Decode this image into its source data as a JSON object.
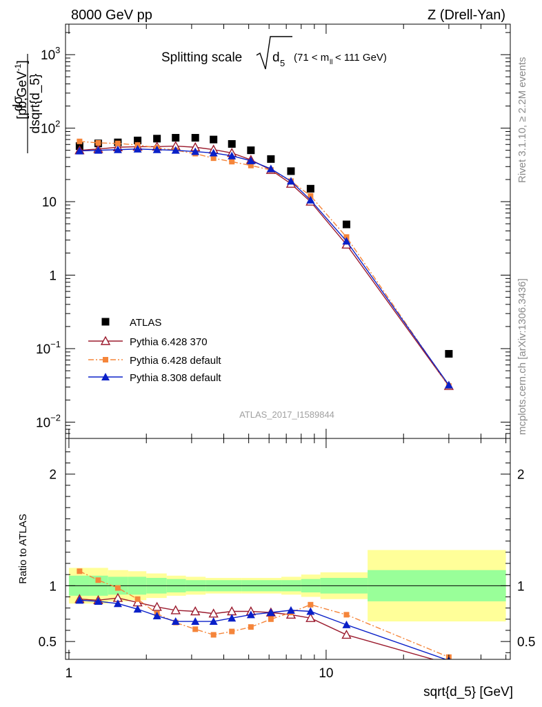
{
  "header": {
    "energy_label": "8000 GeV pp",
    "process_label": "Z (Drell-Yan)",
    "side_label_1": "Rivet 3.1.10, ≥ 2.2M events",
    "side_label_2": "mcplots.cern.ch [arXiv:1306.3436]",
    "watermark": "ATLAS_2017_I1589844"
  },
  "colors": {
    "atlas": "#000000",
    "py6_370": "#9b1b2e",
    "py6_default": "#f5853a",
    "py8_default": "#0a20c8",
    "band_inner": "#99ff99",
    "band_outer": "#ffff99"
  },
  "chart_data": [
    {
      "type": "scatter",
      "panel": "main",
      "title_main": "Splitting scale",
      "title_sym": "d",
      "title_sub": "5",
      "title_range_a": "(71 < m",
      "title_range_sub": "ll",
      "title_range_b": " < 111 GeV)",
      "ylabel_num": "dσ",
      "ylabel_den": "dsqrt{d_5}",
      "ylabel_unit": "[pb,GeV",
      "ylabel_unit_sup": "-1",
      "ylabel_unit_end": "]",
      "xscale": "log",
      "yscale": "log",
      "xlim": [
        0.97,
        52
      ],
      "ylim": [
        0.006,
        2600
      ],
      "legend_position": "bottom-left",
      "y_ticks": [
        {
          "v": 0.01,
          "base": "10",
          "exp": "−2"
        },
        {
          "v": 0.1,
          "base": "10",
          "exp": "−1"
        },
        {
          "v": 1,
          "base": "1",
          "exp": ""
        },
        {
          "v": 10,
          "base": "10",
          "exp": ""
        },
        {
          "v": 100,
          "base": "10",
          "exp": "2"
        },
        {
          "v": 1000,
          "base": "10",
          "exp": "3"
        }
      ],
      "series": [
        {
          "name": "ATLAS",
          "marker": "square",
          "color": "#000000",
          "x": [
            1.1,
            1.3,
            1.55,
            1.85,
            2.2,
            2.6,
            3.1,
            3.65,
            4.3,
            5.1,
            6.1,
            7.3,
            8.7,
            12.0,
            30.0
          ],
          "y": [
            57,
            62,
            64,
            68,
            72,
            74,
            74,
            70,
            61,
            50,
            38,
            26,
            15,
            4.9,
            0.085
          ]
        },
        {
          "name": "Pythia 6.428 370",
          "marker": "triangle-open",
          "color": "#9b1b2e",
          "line": "solid",
          "x": [
            1.1,
            1.3,
            1.55,
            1.85,
            2.2,
            2.6,
            3.1,
            3.65,
            4.3,
            5.1,
            6.1,
            7.3,
            8.7,
            12.0,
            30.0
          ],
          "y": [
            50,
            52,
            55,
            56,
            56,
            57,
            55,
            51,
            46,
            37,
            27,
            17.5,
            10,
            2.6,
            0.031
          ]
        },
        {
          "name": "Pythia 6.428 default",
          "marker": "square-small",
          "color": "#f5853a",
          "line": "dashdot",
          "x": [
            1.1,
            1.3,
            1.55,
            1.85,
            2.2,
            2.6,
            3.1,
            3.65,
            4.3,
            5.1,
            6.1,
            7.3,
            8.7,
            12.0,
            30.0
          ],
          "y": [
            66,
            63,
            62,
            59,
            54,
            50,
            45,
            39,
            35,
            31,
            27,
            19,
            12,
            3.3,
            0.031
          ]
        },
        {
          "name": "Pythia 8.308 default",
          "marker": "triangle",
          "color": "#0a20c8",
          "line": "solid",
          "x": [
            1.1,
            1.3,
            1.55,
            1.85,
            2.2,
            2.6,
            3.1,
            3.65,
            4.3,
            5.1,
            6.1,
            7.3,
            8.7,
            12.0,
            30.0
          ],
          "y": [
            49,
            50,
            51,
            52,
            51,
            50,
            48,
            46,
            42,
            36,
            28,
            19,
            10.5,
            2.9,
            0.032
          ]
        }
      ]
    },
    {
      "type": "line",
      "panel": "ratio",
      "ylabel": "Ratio to ATLAS",
      "xlabel": "sqrt{d_5} [GeV]",
      "xscale": "log",
      "xlim": [
        0.97,
        52
      ],
      "ylim": [
        0.34,
        2.32
      ],
      "y_ticks": [
        0.5,
        1,
        2
      ],
      "y_tick_labels": [
        "0.5",
        "1",
        "2"
      ],
      "x_ticks": [
        1,
        10
      ],
      "x_tick_labels": [
        "1",
        "10"
      ],
      "bands": {
        "edges": [
          1.0,
          1.2,
          1.42,
          1.7,
          2.0,
          2.4,
          2.85,
          3.4,
          4.0,
          4.7,
          5.6,
          6.7,
          8.0,
          9.5,
          14.5,
          50.0
        ],
        "inner_lo": [
          0.91,
          0.91,
          0.92,
          0.92,
          0.93,
          0.94,
          0.95,
          0.95,
          0.95,
          0.95,
          0.95,
          0.95,
          0.94,
          0.93,
          0.86
        ],
        "inner_hi": [
          1.09,
          1.09,
          1.08,
          1.08,
          1.07,
          1.06,
          1.05,
          1.05,
          1.05,
          1.05,
          1.05,
          1.05,
          1.06,
          1.07,
          1.14
        ],
        "outer_lo": [
          0.84,
          0.84,
          0.86,
          0.87,
          0.89,
          0.91,
          0.92,
          0.93,
          0.93,
          0.93,
          0.93,
          0.92,
          0.9,
          0.88,
          0.68
        ],
        "outer_hi": [
          1.16,
          1.16,
          1.14,
          1.13,
          1.11,
          1.09,
          1.08,
          1.07,
          1.07,
          1.07,
          1.07,
          1.08,
          1.1,
          1.12,
          1.32
        ]
      },
      "series": [
        {
          "name": "Pythia 6.428 370",
          "marker": "triangle-open",
          "color": "#9b1b2e",
          "line": "solid",
          "x": [
            1.1,
            1.3,
            1.55,
            1.85,
            2.2,
            2.6,
            3.1,
            3.65,
            4.3,
            5.1,
            6.1,
            7.3,
            8.7,
            12.0,
            30.0
          ],
          "y": [
            0.88,
            0.87,
            0.89,
            0.85,
            0.81,
            0.78,
            0.77,
            0.75,
            0.77,
            0.77,
            0.76,
            0.74,
            0.71,
            0.56,
            0.3
          ]
        },
        {
          "name": "Pythia 6.428 default",
          "marker": "square-small",
          "color": "#f5853a",
          "line": "dashdot",
          "x": [
            1.1,
            1.3,
            1.55,
            1.85,
            2.2,
            2.6,
            3.1,
            3.65,
            4.3,
            5.1,
            6.1,
            7.3,
            8.7,
            12.0,
            30.0
          ],
          "y": [
            1.13,
            1.05,
            0.98,
            0.88,
            0.75,
            0.67,
            0.61,
            0.56,
            0.59,
            0.63,
            0.7,
            0.76,
            0.83,
            0.74,
            0.36
          ]
        },
        {
          "name": "Pythia 8.308 default",
          "marker": "triangle",
          "color": "#0a20c8",
          "line": "solid",
          "x": [
            1.1,
            1.3,
            1.55,
            1.85,
            2.2,
            2.6,
            3.1,
            3.65,
            4.3,
            5.1,
            6.1,
            7.3,
            8.7,
            12.0,
            30.0
          ],
          "y": [
            0.87,
            0.86,
            0.84,
            0.79,
            0.73,
            0.68,
            0.68,
            0.68,
            0.71,
            0.74,
            0.76,
            0.78,
            0.77,
            0.65,
            0.33
          ]
        }
      ]
    }
  ]
}
